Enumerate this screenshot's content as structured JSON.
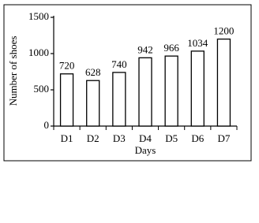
{
  "chart_data": {
    "type": "bar",
    "x_label": "Days",
    "y_label": "Number of shoes",
    "categories": [
      "D1",
      "D2",
      "D3",
      "D4",
      "D5",
      "D6",
      "D7"
    ],
    "values": [
      720,
      628,
      740,
      942,
      966,
      1034,
      1200
    ],
    "ylim": [
      0,
      1500
    ],
    "yticks": [
      0,
      500,
      1000,
      1500
    ]
  }
}
